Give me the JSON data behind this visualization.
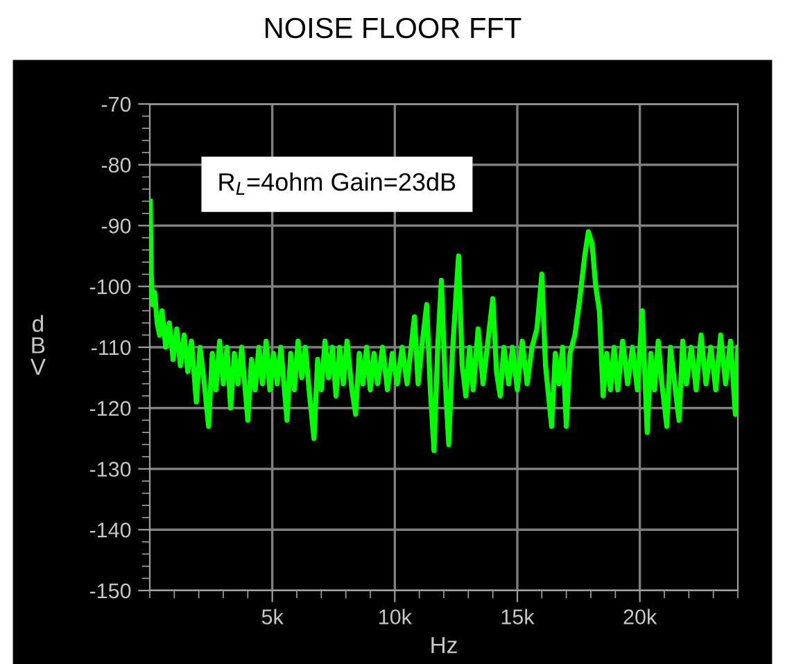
{
  "chart_data": {
    "type": "line",
    "title": "NOISE FLOOR FFT",
    "xlabel": "Hz",
    "ylabel": "dBV",
    "annotations": [
      "R$_{L}$=4ohm Gain=23dB"
    ],
    "x": [
      20,
      60,
      120,
      200,
      300,
      400,
      500,
      650,
      800,
      950,
      1100,
      1250,
      1400,
      1550,
      1700,
      1900,
      2050,
      2200,
      2400,
      2550,
      2700,
      2850,
      3000,
      3150,
      3300,
      3450,
      3600,
      3750,
      4000,
      4150,
      4300,
      4450,
      4600,
      4750,
      4900,
      5050,
      5200,
      5350,
      5600,
      5750,
      5900,
      6050,
      6200,
      6350,
      6500,
      6700,
      6850,
      7000,
      7150,
      7300,
      7450,
      7600,
      7750,
      7900,
      8050,
      8250,
      8400,
      8550,
      8700,
      8850,
      9000,
      9150,
      9300,
      9500,
      9700,
      9900,
      10100,
      10300,
      10500,
      10800,
      10950,
      11100,
      11300,
      11450,
      11600,
      11750,
      11900,
      12050,
      12200,
      12350,
      12600,
      12750,
      12900,
      13050,
      13200,
      13400,
      13600,
      13800,
      14000,
      14150,
      14300,
      14450,
      14650,
      14800,
      15000,
      15200,
      15400,
      15600,
      15800,
      16000,
      16150,
      16400,
      16550,
      16700,
      16850,
      17000,
      17150,
      17350,
      17550,
      17750,
      17900,
      18050,
      18200,
      18350,
      18500,
      18650,
      18800,
      18950,
      19100,
      19300,
      19500,
      19700,
      19900,
      20100,
      20300,
      20450,
      20600,
      20750,
      20900,
      21100,
      21250,
      21450,
      21600,
      21750,
      21900,
      22100,
      22300,
      22500,
      22700,
      22900,
      23100,
      23300,
      23500,
      23700,
      23900,
      24000
    ],
    "series": [
      {
        "color": "#00ff00",
        "values": [
          -86,
          -98,
          -103,
          -101,
          -106,
          -108,
          -104,
          -110,
          -106,
          -112,
          -107,
          -113,
          -108,
          -114,
          -109,
          -119,
          -110,
          -115,
          -123,
          -111,
          -117,
          -109,
          -116,
          -110,
          -120,
          -111,
          -116,
          -110,
          -122,
          -112,
          -117,
          -110,
          -116,
          -109,
          -117,
          -111,
          -116,
          -110,
          -122,
          -111,
          -117,
          -109,
          -115,
          -110,
          -117,
          -125,
          -112,
          -117,
          -109,
          -115,
          -110,
          -118,
          -110,
          -116,
          -109,
          -117,
          -121,
          -111,
          -116,
          -110,
          -117,
          -111,
          -116,
          -110,
          -117,
          -111,
          -116,
          -110,
          -116,
          -105,
          -116,
          -110,
          -103,
          -117,
          -127,
          -110,
          -99,
          -115,
          -126,
          -111,
          -95,
          -113,
          -118,
          -110,
          -117,
          -107,
          -116,
          -109,
          -102,
          -114,
          -118,
          -110,
          -116,
          -110,
          -117,
          -109,
          -116,
          -110,
          -107,
          -98,
          -113,
          -123,
          -111,
          -116,
          -110,
          -123,
          -111,
          -108,
          -102,
          -95,
          -91,
          -93,
          -100,
          -104,
          -118,
          -111,
          -117,
          -110,
          -117,
          -109,
          -116,
          -110,
          -117,
          -104,
          -124,
          -111,
          -117,
          -109,
          -116,
          -123,
          -110,
          -117,
          -122,
          -109,
          -116,
          -110,
          -117,
          -108,
          -116,
          -110,
          -117,
          -108,
          -116,
          -109,
          -121,
          -110
        ]
      }
    ],
    "xlim": [
      0,
      24000
    ],
    "ylim": [
      -150,
      -70
    ],
    "xticks": [
      {
        "value": 5000,
        "label": "5k"
      },
      {
        "value": 10000,
        "label": "10k"
      },
      {
        "value": 15000,
        "label": "15k"
      },
      {
        "value": 20000,
        "label": "20k"
      }
    ],
    "yticks": [
      -150,
      -140,
      -130,
      -120,
      -110,
      -100,
      -90,
      -80,
      -70
    ],
    "grid": true
  }
}
